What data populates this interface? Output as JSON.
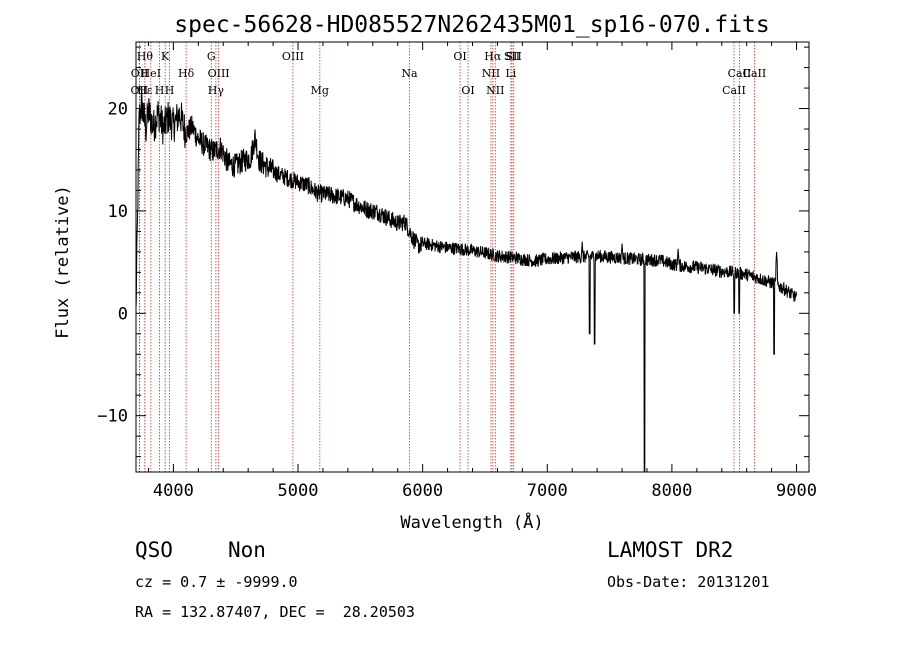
{
  "chart_data": {
    "type": "line",
    "title": "spec-56628-HD085527N262435M01_sp16-070.fits",
    "xlabel": "Wavelength (Å)",
    "ylabel": "Flux (relative)",
    "xlim": [
      3700,
      9100
    ],
    "ylim": [
      -15.5,
      26.5
    ],
    "xticks": [
      4000,
      5000,
      6000,
      7000,
      8000,
      9000
    ],
    "yticks": [
      -10,
      0,
      10,
      20
    ],
    "spectrum_anchors": [
      [
        3700,
        0
      ],
      [
        3712,
        9
      ],
      [
        3725,
        19
      ],
      [
        3745,
        20.5
      ],
      [
        3780,
        18
      ],
      [
        3800,
        19.8
      ],
      [
        3840,
        18.2
      ],
      [
        3880,
        19.6
      ],
      [
        3920,
        18
      ],
      [
        3960,
        19.2
      ],
      [
        4000,
        18.3
      ],
      [
        4050,
        19.5
      ],
      [
        4100,
        17.6
      ],
      [
        4150,
        18.2
      ],
      [
        4200,
        17
      ],
      [
        4260,
        16.3
      ],
      [
        4320,
        15.8
      ],
      [
        4380,
        16.2
      ],
      [
        4440,
        14.6
      ],
      [
        4500,
        14.4
      ],
      [
        4560,
        14.9
      ],
      [
        4620,
        15.2
      ],
      [
        4655,
        17.2
      ],
      [
        4690,
        14.9
      ],
      [
        4760,
        14.2
      ],
      [
        4840,
        13.6
      ],
      [
        4920,
        13.2
      ],
      [
        5000,
        12.8
      ],
      [
        5080,
        12.5
      ],
      [
        5160,
        11.7
      ],
      [
        5240,
        11.6
      ],
      [
        5320,
        11.4
      ],
      [
        5400,
        11.2
      ],
      [
        5480,
        10.6
      ],
      [
        5560,
        10.1
      ],
      [
        5640,
        9.9
      ],
      [
        5720,
        9.3
      ],
      [
        5800,
        8.8
      ],
      [
        5860,
        8.9
      ],
      [
        5920,
        7.4
      ],
      [
        5960,
        6.6
      ],
      [
        6020,
        6.8
      ],
      [
        6100,
        6.6
      ],
      [
        6200,
        6.4
      ],
      [
        6300,
        6.3
      ],
      [
        6400,
        6.1
      ],
      [
        6500,
        5.9
      ],
      [
        6600,
        5.6
      ],
      [
        6700,
        5.5
      ],
      [
        6800,
        5.3
      ],
      [
        6900,
        5.1
      ],
      [
        7000,
        5.3
      ],
      [
        7100,
        5.4
      ],
      [
        7200,
        5.5
      ],
      [
        7300,
        5.5
      ],
      [
        7400,
        5.6
      ],
      [
        7500,
        5.5
      ],
      [
        7600,
        5.4
      ],
      [
        7700,
        5.3
      ],
      [
        7800,
        5.2
      ],
      [
        7900,
        5.2
      ],
      [
        8000,
        4.8
      ],
      [
        8100,
        4.6
      ],
      [
        8200,
        4.5
      ],
      [
        8300,
        4.3
      ],
      [
        8400,
        4.1
      ],
      [
        8500,
        4.0
      ],
      [
        8600,
        3.8
      ],
      [
        8700,
        3.4
      ],
      [
        8800,
        3.0
      ],
      [
        8900,
        2.4
      ],
      [
        9000,
        1.5
      ]
    ],
    "absorption_features": [
      [
        7340,
        -2.0
      ],
      [
        7380,
        -3.0
      ],
      [
        7780,
        -15.5
      ],
      [
        8500,
        0.0
      ],
      [
        8540,
        0.0
      ],
      [
        8820,
        -4.0
      ]
    ],
    "emission_features": [
      [
        7280,
        7.0
      ],
      [
        7600,
        6.8
      ],
      [
        8050,
        6.3
      ],
      [
        8840,
        6.0
      ]
    ],
    "line_markers": [
      {
        "label": "OII",
        "x": 3727,
        "row": "lower"
      },
      {
        "label": "OII",
        "x": 3729,
        "row": "mid"
      },
      {
        "label": "Hθ",
        "x": 3771,
        "row": "upper"
      },
      {
        "label": "Hε",
        "x": 3771,
        "row": "lower"
      },
      {
        "label": "HeI",
        "x": 3819,
        "row": "mid"
      },
      {
        "label": "H",
        "x": 3889,
        "row": "lower"
      },
      {
        "label": "K",
        "x": 3934,
        "row": "upper"
      },
      {
        "label": "H",
        "x": 3969,
        "row": "lower"
      },
      {
        "label": "Hδ",
        "x": 4102,
        "row": "mid"
      },
      {
        "label": "G",
        "x": 4304,
        "row": "upper"
      },
      {
        "label": "OIII",
        "x": 4363,
        "row": "mid"
      },
      {
        "label": "Hγ",
        "x": 4341,
        "row": "lower"
      },
      {
        "label": "OIII",
        "x": 4959,
        "row": "upper"
      },
      {
        "label": "Mg",
        "x": 5175,
        "row": "lower"
      },
      {
        "label": "Na",
        "x": 5894,
        "row": "mid"
      },
      {
        "label": "OI",
        "x": 6300,
        "row": "upper"
      },
      {
        "label": "OI",
        "x": 6364,
        "row": "lower"
      },
      {
        "label": "Hα",
        "x": 6563,
        "row": "upper"
      },
      {
        "label": "NII",
        "x": 6548,
        "row": "mid"
      },
      {
        "label": "NII",
        "x": 6583,
        "row": "lower"
      },
      {
        "label": "SII",
        "x": 6717,
        "row": "upper"
      },
      {
        "label": "Li",
        "x": 6708,
        "row": "mid"
      },
      {
        "label": "SII",
        "x": 6731,
        "row": "upper"
      },
      {
        "label": "CaII",
        "x": 8542,
        "row": "mid"
      },
      {
        "label": "CaII",
        "x": 8498,
        "row": "lower"
      },
      {
        "label": "CaII",
        "x": 8662,
        "row": "mid"
      }
    ],
    "line_color": "#000000",
    "marker_color": "#c0392b"
  },
  "info": {
    "class_label": "QSO",
    "subclass_label": "Non",
    "survey_label": "LAMOST DR2",
    "redshift_text": "cz = 0.7 ± -9999.0",
    "obs_date_text": "Obs-Date: 20131201",
    "coords_text": "RA = 132.87407, DEC =  28.20503"
  }
}
